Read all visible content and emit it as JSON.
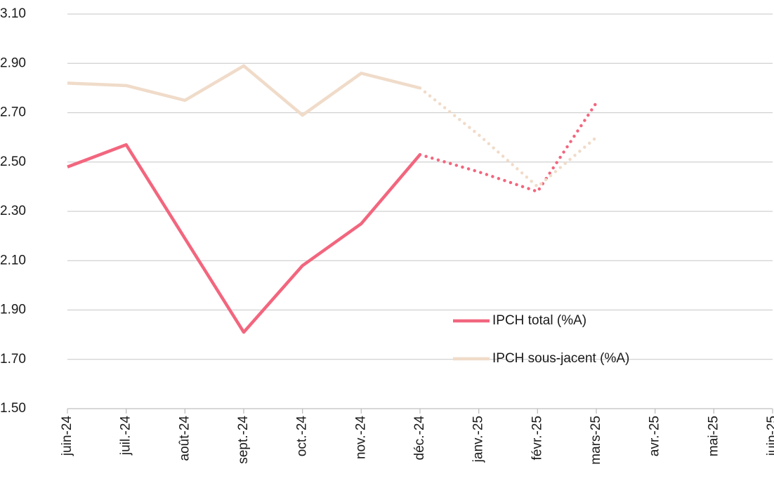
{
  "chart_data": {
    "type": "line",
    "categories": [
      "juin-24",
      "juil.-24",
      "août-24",
      "sept.-24",
      "oct.-24",
      "nov.-24",
      "déc.-24",
      "janv.-25",
      "févr.-25",
      "mars-25",
      "avr.-25",
      "mai-25",
      "juin-25"
    ],
    "series": [
      {
        "name": "IPCH total (%A)",
        "color": "#f2667e",
        "values": [
          2.48,
          2.57,
          2.19,
          1.81,
          2.08,
          2.25,
          2.53,
          2.46,
          2.38,
          2.74,
          null,
          null,
          null
        ]
      },
      {
        "name": "IPCH sous-jacent (%A)",
        "color": "#f0dbc9",
        "values": [
          2.82,
          2.81,
          2.75,
          2.89,
          2.69,
          2.86,
          2.8,
          2.61,
          2.4,
          2.6,
          null,
          null,
          null
        ]
      }
    ],
    "dotted_from": 6,
    "ylim": [
      1.5,
      3.1
    ],
    "yticks": [
      {
        "value": 1.5,
        "label": "1.50"
      },
      {
        "value": 1.7,
        "label": "1.70"
      },
      {
        "value": 1.9,
        "label": "1.90"
      },
      {
        "value": 2.1,
        "label": "2.10"
      },
      {
        "value": 2.3,
        "label": "2.30"
      },
      {
        "value": 2.5,
        "label": "2.50"
      },
      {
        "value": 2.7,
        "label": "2.70"
      },
      {
        "value": 2.9,
        "label": "2.90"
      },
      {
        "value": 3.1,
        "label": "3.10"
      }
    ],
    "grid": true,
    "legend": "lower-center"
  }
}
